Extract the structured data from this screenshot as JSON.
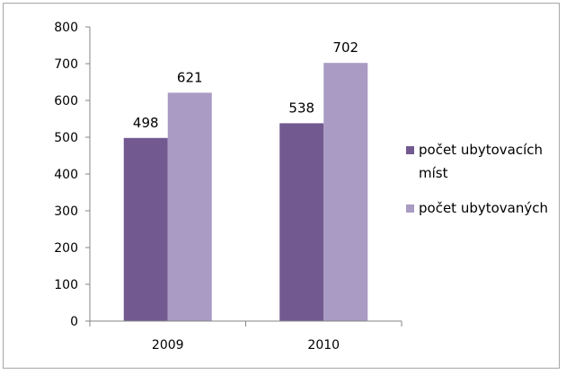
{
  "chart_data": {
    "type": "bar",
    "categories": [
      "2009",
      "2010"
    ],
    "series": [
      {
        "name": "počet ubytovacích míst",
        "values": [
          498,
          538
        ],
        "color": "#725990"
      },
      {
        "name": "počet ubytovaných",
        "values": [
          621,
          702
        ],
        "color": "#a99bc3"
      }
    ],
    "ylim": [
      0,
      800
    ],
    "yticks": [
      0,
      100,
      200,
      300,
      400,
      500,
      600,
      700,
      800
    ],
    "legend": {
      "position": "right",
      "entries": [
        {
          "lines": [
            "počet ubytovacích",
            "míst"
          ]
        },
        {
          "lines": [
            "počet ubytovaných"
          ]
        }
      ]
    },
    "grid": false,
    "data_labels": true
  }
}
